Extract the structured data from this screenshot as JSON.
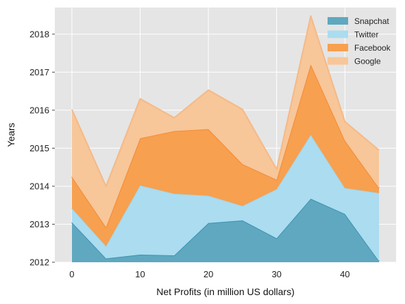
{
  "chart_data": {
    "type": "area",
    "stacked": true,
    "title": "",
    "xlabel": "Net Profits (in million US dollars)",
    "ylabel": "Years",
    "x_ticks": [
      0,
      10,
      20,
      30,
      40
    ],
    "y_ticks": [
      2012,
      2013,
      2014,
      2015,
      2016,
      2017,
      2018
    ],
    "xlim": [
      -2.5,
      47.5
    ],
    "ylim": [
      2012,
      2018.7
    ],
    "x": [
      0,
      5,
      10,
      15,
      20,
      25,
      30,
      35,
      40,
      45
    ],
    "baseline": 2012,
    "grid": true,
    "legend_position": "top-right",
    "series": [
      {
        "name": "Snapchat",
        "color": "#5fa8c0",
        "edge_color": "#3d93b0",
        "cumulative": [
          2013.05,
          2012.1,
          2012.2,
          2012.18,
          2013.03,
          2013.1,
          2012.63,
          2013.67,
          2013.27,
          2012.03
        ]
      },
      {
        "name": "Twitter",
        "color": "#abdcf0",
        "edge_color": "#a0d6ec",
        "cumulative": [
          2013.42,
          2012.42,
          2014.02,
          2013.8,
          2013.75,
          2013.48,
          2013.92,
          2015.35,
          2013.95,
          2013.82
        ]
      },
      {
        "name": "Facebook",
        "color": "#f7a04f",
        "edge_color": "#f48a36",
        "cumulative": [
          2014.25,
          2012.92,
          2015.26,
          2015.45,
          2015.5,
          2014.58,
          2014.17,
          2017.2,
          2015.2,
          2013.95
        ]
      },
      {
        "name": "Google",
        "color": "#f7c699",
        "edge_color": "#f5b987",
        "cumulative": [
          2016.02,
          2014.0,
          2016.3,
          2015.8,
          2016.53,
          2016.02,
          2014.45,
          2018.48,
          2015.7,
          2014.95
        ]
      }
    ]
  },
  "colors": {
    "plot_background": "#e5e5e5",
    "grid": "#ffffff"
  }
}
